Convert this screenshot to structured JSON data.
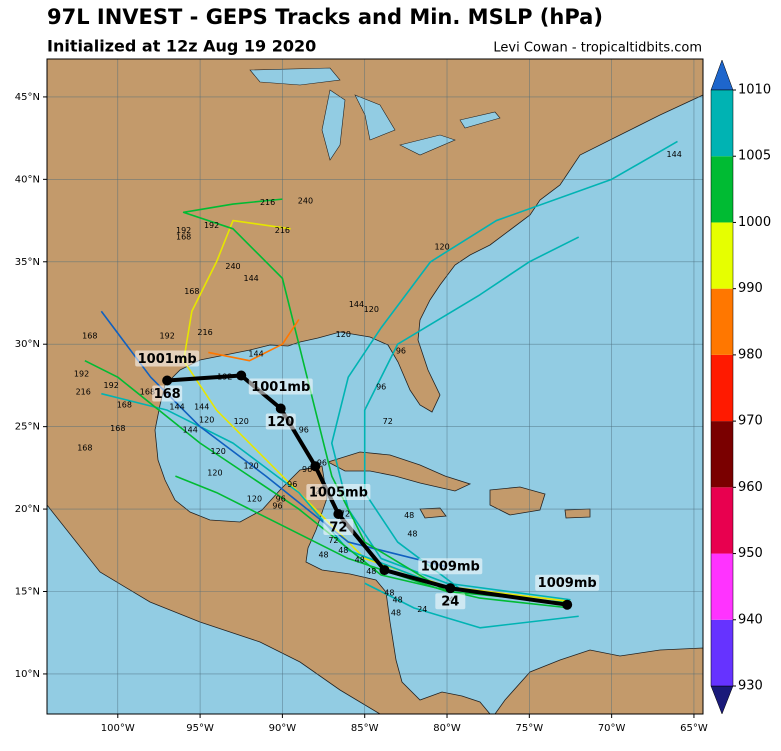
{
  "chart_data": {
    "type": "map",
    "title": "97L INVEST - GEPS Tracks and Min. MSLP (hPa)",
    "subtitle": "Initialized at 12z Aug 19 2020",
    "credit": "Levi Cowan - tropicaltidbits.com",
    "xlim": [
      -104.3,
      -64.45
    ],
    "ylim": [
      7.57,
      47.3
    ],
    "xticks": [
      {
        "value": -100,
        "label": "100°W"
      },
      {
        "value": -95,
        "label": "95°W"
      },
      {
        "value": -90,
        "label": "90°W"
      },
      {
        "value": -85,
        "label": "85°W"
      },
      {
        "value": -80,
        "label": "80°W"
      },
      {
        "value": -75,
        "label": "75°W"
      },
      {
        "value": -70,
        "label": "70°W"
      },
      {
        "value": -65,
        "label": "65°W"
      }
    ],
    "yticks": [
      {
        "value": 10,
        "label": "10°N"
      },
      {
        "value": 15,
        "label": "15°N"
      },
      {
        "value": 20,
        "label": "20°N"
      },
      {
        "value": 25,
        "label": "25°N"
      },
      {
        "value": 30,
        "label": "30°N"
      },
      {
        "value": 35,
        "label": "35°N"
      },
      {
        "value": 40,
        "label": "40°N"
      },
      {
        "value": 45,
        "label": "45°N"
      }
    ],
    "grid": true,
    "mean_track": {
      "color": "#000000",
      "lon": [
        -72.7,
        -79.8,
        -83.8,
        -86.6,
        -88.0,
        -90.1,
        -92.5,
        -97.0
      ],
      "lat": [
        14.2,
        15.2,
        16.3,
        19.7,
        22.6,
        26.1,
        28.1,
        27.8
      ],
      "pressure_labels": [
        "1009mb",
        "1009mb",
        null,
        "1005mb",
        null,
        "1001mb",
        null,
        "1001mb"
      ],
      "hour_labels": [
        null,
        "24",
        null,
        "72",
        null,
        "120",
        null,
        "168"
      ]
    },
    "ensemble": [
      {
        "color": "#00b3b3",
        "lon": [
          -72.5,
          -80,
          -84,
          -86,
          -87,
          -86,
          -84,
          -81,
          -77,
          -70,
          -66
        ],
        "lat": [
          14.5,
          15.5,
          17,
          20,
          24,
          28,
          31,
          35,
          37.5,
          40,
          42.3
        ]
      },
      {
        "color": "#e6e600",
        "lon": [
          -72.5,
          -80,
          -85,
          -88,
          -91,
          -94,
          -96,
          -95.5,
          -94,
          -93,
          -89.5
        ],
        "lat": [
          14.4,
          15.3,
          17,
          20,
          23,
          26,
          29,
          32,
          35,
          37.5,
          37
        ]
      },
      {
        "color": "#00bb33",
        "lon": [
          -72.5,
          -80,
          -86,
          -90,
          -94,
          -96.5
        ],
        "lat": [
          14.3,
          15,
          17,
          19,
          21,
          22
        ]
      },
      {
        "color": "#00b3b3",
        "lon": [
          -80,
          -86,
          -89,
          -93,
          -97,
          -101
        ],
        "lat": [
          15.2,
          17.5,
          21,
          24,
          26,
          27
        ]
      },
      {
        "color": "#1060c0",
        "lon": [
          -80,
          -86,
          -91,
          -95,
          -98,
          -101
        ],
        "lat": [
          16.5,
          18,
          22,
          25,
          28,
          32
        ]
      },
      {
        "color": "#00bb33",
        "lon": [
          -80,
          -85,
          -87,
          -88,
          -89,
          -90,
          -93,
          -96,
          -93,
          -90
        ],
        "lat": [
          15,
          18,
          22,
          26,
          30,
          34,
          37,
          38,
          38.5,
          38.8
        ]
      },
      {
        "color": "#00b3b3",
        "lon": [
          -79,
          -83,
          -85,
          -85,
          -83,
          -78,
          -75,
          -72
        ],
        "lat": [
          15,
          18,
          21,
          26,
          30,
          33,
          35,
          36.5
        ]
      },
      {
        "color": "#ff7700",
        "lon": [
          -94.5,
          -92,
          -90,
          -89
        ],
        "lat": [
          29.5,
          29,
          30,
          31.5
        ]
      },
      {
        "color": "#00b3b3",
        "lon": [
          -72,
          -78,
          -82,
          -85
        ],
        "lat": [
          13.5,
          12.8,
          14,
          15.5
        ]
      },
      {
        "color": "#00bb33",
        "lon": [
          -72.5,
          -78,
          -84,
          -89,
          -95,
          -100,
          -102
        ],
        "lat": [
          14,
          14.6,
          16,
          20,
          24,
          28,
          29
        ]
      }
    ],
    "hour_labels": [
      {
        "text": "144",
        "lon": -66.2,
        "lat": 41.5
      },
      {
        "text": "216",
        "lon": -90.9,
        "lat": 38.6
      },
      {
        "text": "240",
        "lon": -88.6,
        "lat": 38.7
      },
      {
        "text": "192",
        "lon": -94.3,
        "lat": 37.2
      },
      {
        "text": "192",
        "lon": -96,
        "lat": 36.9
      },
      {
        "text": "168",
        "lon": -96,
        "lat": 36.5
      },
      {
        "text": "216",
        "lon": -90,
        "lat": 36.9
      },
      {
        "text": "240",
        "lon": -93,
        "lat": 34.7
      },
      {
        "text": "144",
        "lon": -91.9,
        "lat": 34
      },
      {
        "text": "168",
        "lon": -95.5,
        "lat": 33.2
      },
      {
        "text": "120",
        "lon": -80.3,
        "lat": 35.9
      },
      {
        "text": "144",
        "lon": -85.5,
        "lat": 32.4
      },
      {
        "text": "120",
        "lon": -84.6,
        "lat": 32.1
      },
      {
        "text": "120",
        "lon": -86.3,
        "lat": 30.6
      },
      {
        "text": "96",
        "lon": -82.8,
        "lat": 29.6
      },
      {
        "text": "96",
        "lon": -84,
        "lat": 27.4
      },
      {
        "text": "72",
        "lon": -83.6,
        "lat": 25.3
      },
      {
        "text": "48",
        "lon": -82.3,
        "lat": 19.6
      },
      {
        "text": "48",
        "lon": -82.1,
        "lat": 18.5
      },
      {
        "text": "24",
        "lon": -81.5,
        "lat": 13.9
      },
      {
        "text": "24",
        "lon": -79.9,
        "lat": 14.5
      },
      {
        "text": "168",
        "lon": -101.7,
        "lat": 30.5
      },
      {
        "text": "192",
        "lon": -97,
        "lat": 30.5
      },
      {
        "text": "192",
        "lon": -102.2,
        "lat": 28.2
      },
      {
        "text": "216",
        "lon": -102.1,
        "lat": 27.1
      },
      {
        "text": "192",
        "lon": -100.4,
        "lat": 27.5
      },
      {
        "text": "168",
        "lon": -98.2,
        "lat": 27.1
      },
      {
        "text": "168",
        "lon": -99.6,
        "lat": 26.3
      },
      {
        "text": "144",
        "lon": -96.4,
        "lat": 26.2
      },
      {
        "text": "144",
        "lon": -94.9,
        "lat": 26.2
      },
      {
        "text": "168",
        "lon": -100,
        "lat": 24.9
      },
      {
        "text": "168",
        "lon": -102,
        "lat": 23.7
      },
      {
        "text": "144",
        "lon": -95.6,
        "lat": 24.8
      },
      {
        "text": "120",
        "lon": -94.6,
        "lat": 25.4
      },
      {
        "text": "120",
        "lon": -92.5,
        "lat": 25.3
      },
      {
        "text": "120",
        "lon": -93.9,
        "lat": 23.5
      },
      {
        "text": "120",
        "lon": -94.1,
        "lat": 22.2
      },
      {
        "text": "120",
        "lon": -91.9,
        "lat": 22.6
      },
      {
        "text": "120",
        "lon": -91.7,
        "lat": 20.6
      },
      {
        "text": "96",
        "lon": -88.7,
        "lat": 24.8
      },
      {
        "text": "96",
        "lon": -88.5,
        "lat": 22.4
      },
      {
        "text": "96",
        "lon": -87.6,
        "lat": 22.8
      },
      {
        "text": "96",
        "lon": -89.4,
        "lat": 21.5
      },
      {
        "text": "96",
        "lon": -90.1,
        "lat": 20.6
      },
      {
        "text": "96",
        "lon": -90.3,
        "lat": 20.2
      },
      {
        "text": "72",
        "lon": -88,
        "lat": 21.1
      },
      {
        "text": "72",
        "lon": -86.2,
        "lat": 19.7
      },
      {
        "text": "72",
        "lon": -86.9,
        "lat": 18.1
      },
      {
        "text": "48",
        "lon": -87.5,
        "lat": 17.2
      },
      {
        "text": "48",
        "lon": -86.3,
        "lat": 17.5
      },
      {
        "text": "48",
        "lon": -85.3,
        "lat": 16.9
      },
      {
        "text": "48",
        "lon": -84.6,
        "lat": 16.2
      },
      {
        "text": "48",
        "lon": -83.5,
        "lat": 14.9
      },
      {
        "text": "48",
        "lon": -83,
        "lat": 14.5
      },
      {
        "text": "48",
        "lon": -83.1,
        "lat": 13.7
      },
      {
        "text": "192",
        "lon": -93.5,
        "lat": 28
      },
      {
        "text": "144",
        "lon": -91.6,
        "lat": 29.4
      },
      {
        "text": "216",
        "lon": -94.7,
        "lat": 30.7
      }
    ],
    "colorbar": {
      "levels": [
        930,
        940,
        950,
        960,
        970,
        980,
        990,
        1000,
        1005,
        1010
      ],
      "colors": [
        "#6633ff",
        "#ff33ff",
        "#e8004f",
        "#7a0000",
        "#ff1a00",
        "#ff7700",
        "#e6ff00",
        "#00bb33",
        "#00b3b3"
      ],
      "under_color": "#1a1a7a",
      "over_color": "#1e66cc"
    }
  }
}
